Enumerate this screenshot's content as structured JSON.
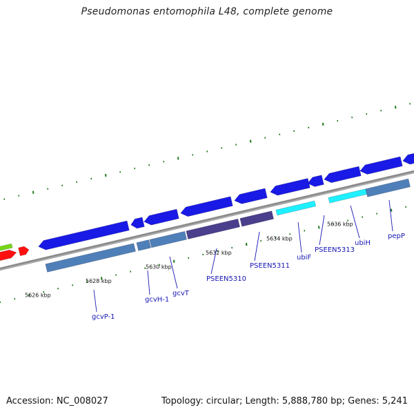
{
  "title": "Pseudomonas entomophila L48, complete genome",
  "footer": {
    "accession": "Accession: NC_008027",
    "topology": "Topology: circular; Length: 5,888,780 bp; Genes: 5,241"
  },
  "colors": {
    "backbone": "#8c8c8c",
    "cds_forward": "#1a1ae6",
    "cds_blue_steel": "#4f7fb8",
    "cds_slate": "#4a3f8c",
    "cds_cyan": "#1ff0ff",
    "cds_red": "#ff1010",
    "cds_green": "#77d616",
    "tick_green": "#1f7a1f",
    "label_blue": "#1515b5"
  },
  "scale": {
    "ticks": [
      "5626 kbp",
      "5628 kbp",
      "5630 kbp",
      "5632 kbp",
      "5634 kbp",
      "5636 kbp"
    ]
  },
  "genes": [
    {
      "name": "gcvP-1"
    },
    {
      "name": "gcvH-1"
    },
    {
      "name": "gcvT"
    },
    {
      "name": "PSEEN5310"
    },
    {
      "name": "PSEEN5311"
    },
    {
      "name": "ubiF"
    },
    {
      "name": "PSEEN5313"
    },
    {
      "name": "ubiH"
    },
    {
      "name": "pepP"
    }
  ]
}
